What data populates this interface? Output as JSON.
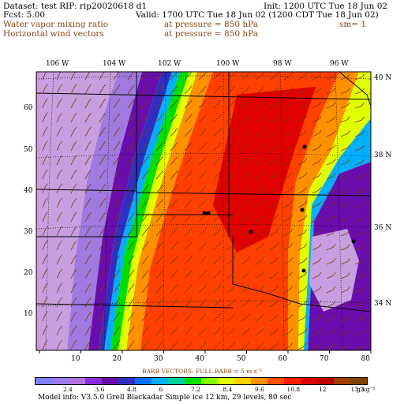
{
  "header": {
    "line1_left": "Dataset: test   RIP: rip20020618  d1",
    "line1_right": "Init: 1200 UTC Tue 18 Jun 02",
    "line2_left": "Fcst:       5.00",
    "line2_right": "Valid: 1700 UTC Tue 18 Jun 02 (1200 CDT Tue 18 Jun 02)",
    "line3_left": "Water vapor mixing ratio",
    "line3_mid": "at pressure =   850 hPa",
    "line3_right": "sm= 1",
    "line4_left": "Horizontal wind vectors",
    "line4_mid": "at pressure =   850 hPa"
  },
  "map": {
    "lon_labels": [
      "106 W",
      "104 W",
      "102 W",
      "100 W",
      "98 W",
      "96 W"
    ],
    "lat_labels": [
      "40 N",
      "38 N",
      "36 N",
      "34 N"
    ],
    "grid_x": [
      "10",
      "20",
      "30",
      "40",
      "50",
      "60",
      "70",
      "80"
    ],
    "grid_y": [
      "60",
      "50",
      "40",
      "30",
      "20",
      "10"
    ]
  },
  "legend": {
    "barb_note": "BARB VECTORS:  FULL BARB = 5 m s⁻¹",
    "tick_labels": [
      "2.4",
      "3.6",
      "4.8",
      "6",
      "7.2",
      "8.4",
      "9.6",
      "10.8",
      "12",
      "13.2"
    ],
    "units": "g kg⁻¹",
    "colors": [
      "#8080ff",
      "#9a7bf0",
      "#b070e0",
      "#8a2be2",
      "#6a0dad",
      "#3030c0",
      "#0070ff",
      "#00b0ff",
      "#00d0a0",
      "#00e000",
      "#80ff00",
      "#e0ff00",
      "#ffd000",
      "#ff9000",
      "#ff5000",
      "#ff2000",
      "#e00000",
      "#c00000",
      "#a04000",
      "#804000"
    ]
  },
  "footer": {
    "model_info": "Model info: V3.5.0   Grell    Blackadar   Simple ice    12 km,  29 levels,    80 sec"
  },
  "colors": {
    "text_brown": "#8b4513",
    "wind_barb": "#7a3b00"
  }
}
